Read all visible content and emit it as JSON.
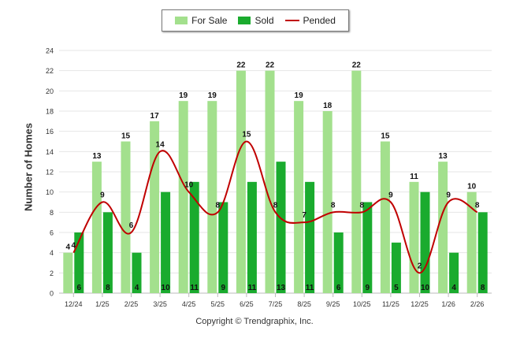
{
  "legend": {
    "for_sale": "For Sale",
    "sold": "Sold",
    "pended": "Pended"
  },
  "footer": {
    "copyright": "Copyright © Trendgraphix, Inc."
  },
  "chart_data": {
    "type": "bar",
    "ylabel": "Number of Homes",
    "xlabel": "",
    "ylim": [
      0,
      24
    ],
    "yticks": [
      0,
      2,
      4,
      6,
      8,
      10,
      12,
      14,
      16,
      18,
      20,
      22,
      24
    ],
    "grid": true,
    "legend_position": "top-center",
    "categories": [
      "12/24",
      "1/25",
      "2/25",
      "3/25",
      "4/25",
      "5/25",
      "6/25",
      "7/25",
      "8/25",
      "9/25",
      "10/25",
      "11/25",
      "12/25",
      "1/26",
      "2/26"
    ],
    "series": [
      {
        "name": "For Sale",
        "kind": "bar",
        "color": "#a3e08d",
        "values": [
          4,
          13,
          15,
          17,
          19,
          19,
          22,
          22,
          19,
          18,
          22,
          15,
          11,
          13,
          10
        ]
      },
      {
        "name": "Sold",
        "kind": "bar",
        "color": "#1aab2e",
        "values": [
          6,
          8,
          4,
          10,
          11,
          9,
          11,
          13,
          11,
          6,
          9,
          5,
          10,
          4,
          8
        ]
      },
      {
        "name": "Pended",
        "kind": "line",
        "color": "#c00000",
        "values": [
          4,
          9,
          6,
          14,
          10,
          8,
          15,
          8,
          7,
          8,
          8,
          9,
          2,
          9,
          8
        ]
      }
    ]
  }
}
